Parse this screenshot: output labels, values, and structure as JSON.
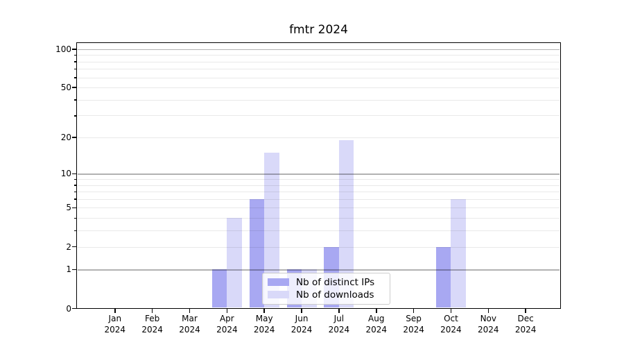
{
  "title": "fmtr 2024",
  "chart_data": {
    "type": "bar",
    "title": "fmtr 2024",
    "categories": [
      "Jan",
      "Feb",
      "Mar",
      "Apr",
      "May",
      "Jun",
      "Jul",
      "Aug",
      "Sep",
      "Oct",
      "Nov",
      "Dec"
    ],
    "x_tick_year": "2024",
    "series": [
      {
        "name": "Nb of distinct IPs",
        "color": "#a8a8f2",
        "values": [
          0,
          0,
          0,
          1,
          6,
          1,
          2,
          0,
          0,
          2,
          0,
          0
        ]
      },
      {
        "name": "Nb of downloads",
        "color": "#d9d9f9",
        "values": [
          0,
          0,
          0,
          4,
          15,
          1,
          19,
          0,
          0,
          6,
          0,
          0
        ]
      }
    ],
    "yscale": "log1p",
    "ylim": [
      0,
      113
    ],
    "yticks": [
      0,
      1,
      2,
      5,
      10,
      20,
      50,
      100
    ],
    "major_grid_values": [
      1,
      10,
      100
    ],
    "minor_grid_values": [
      2,
      3,
      4,
      5,
      6,
      7,
      8,
      9,
      20,
      30,
      40,
      50,
      60,
      70,
      80,
      90
    ],
    "grid": "both",
    "legend_position": "lower center",
    "colors": {
      "bar_distinct_ips": "#a8a8f2",
      "bar_downloads": "#d9d9f9",
      "major_grid": "#b0b0b0",
      "minor_grid": "#e9e9e9",
      "spine": "#000000",
      "background": "#ffffff"
    }
  }
}
